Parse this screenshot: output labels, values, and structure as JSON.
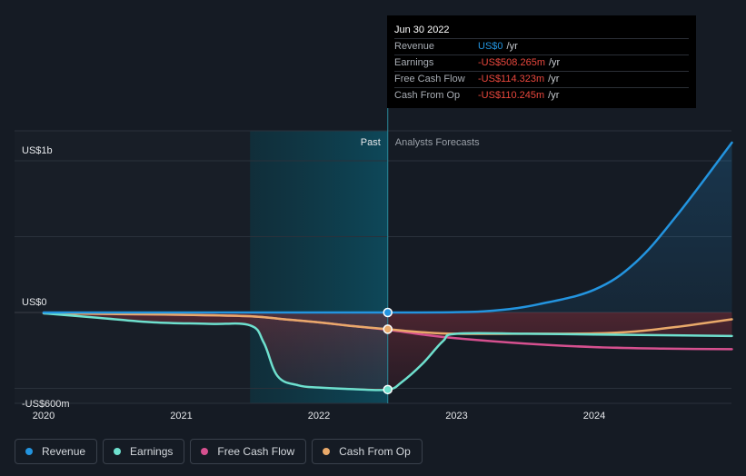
{
  "colors": {
    "background": "#151b24",
    "revenue": "#2394df",
    "earnings": "#6ee0ce",
    "free_cash_flow": "#d6508f",
    "cash_from_op": "#e9a96a",
    "negative_value": "#e8473d",
    "positive_value": "#2394df"
  },
  "tooltip": {
    "date": "Jun 30 2022",
    "rows": [
      {
        "label": "Revenue",
        "value": "US$0",
        "unit": "/yr",
        "tone": "positive"
      },
      {
        "label": "Earnings",
        "value": "-US$508.265m",
        "unit": "/yr",
        "tone": "negative"
      },
      {
        "label": "Free Cash Flow",
        "value": "-US$114.323m",
        "unit": "/yr",
        "tone": "negative"
      },
      {
        "label": "Cash From Op",
        "value": "-US$110.245m",
        "unit": "/yr",
        "tone": "negative"
      }
    ]
  },
  "legend": [
    {
      "label": "Revenue",
      "color_key": "revenue"
    },
    {
      "label": "Earnings",
      "color_key": "earnings"
    },
    {
      "label": "Free Cash Flow",
      "color_key": "free_cash_flow"
    },
    {
      "label": "Cash From Op",
      "color_key": "cash_from_op"
    }
  ],
  "chart_data": {
    "type": "line",
    "title": "",
    "units": "US$ millions",
    "ylim": [
      -650,
      1200
    ],
    "xlim": [
      2019.9,
      2025.0
    ],
    "y_axis_labels": [
      {
        "value": 1000,
        "label": "US$1b"
      },
      {
        "value": 0,
        "label": "US$0"
      },
      {
        "value": -600,
        "label": "-US$600m"
      }
    ],
    "x_ticks": [
      {
        "value": 2020,
        "label": "2020"
      },
      {
        "value": 2021,
        "label": "2021"
      },
      {
        "value": 2022,
        "label": "2022"
      },
      {
        "value": 2023,
        "label": "2023"
      },
      {
        "value": 2024,
        "label": "2024"
      }
    ],
    "divider": {
      "x": 2022.5,
      "past_label": "Past",
      "forecast_label": "Analysts Forecasts"
    },
    "highlight_start": 2021.5,
    "series": [
      {
        "name": "Revenue",
        "color_key": "revenue",
        "fill": true,
        "x": [
          2020.0,
          2021.0,
          2022.0,
          2022.5,
          2023.0,
          2023.3,
          2023.6,
          2024.0,
          2024.3,
          2024.6,
          2025.0
        ],
        "y": [
          0,
          0,
          0,
          0,
          2,
          15,
          55,
          150,
          330,
          640,
          1120
        ]
      },
      {
        "name": "Free Cash Flow",
        "color_key": "free_cash_flow",
        "fill": false,
        "x": [
          2020.0,
          2020.5,
          2021.0,
          2021.5,
          2021.75,
          2022.0,
          2022.25,
          2022.5,
          2022.75,
          2023.0,
          2023.5,
          2024.0,
          2024.5,
          2025.0
        ],
        "y": [
          -5,
          -10,
          -15,
          -25,
          -45,
          -65,
          -90,
          -114,
          -145,
          -170,
          -205,
          -228,
          -238,
          -242
        ]
      },
      {
        "name": "Cash From Op",
        "color_key": "cash_from_op",
        "fill": false,
        "x": [
          2020.0,
          2020.5,
          2021.0,
          2021.5,
          2021.75,
          2022.0,
          2022.25,
          2022.5,
          2022.75,
          2023.0,
          2023.5,
          2024.0,
          2024.3,
          2024.6,
          2025.0
        ],
        "y": [
          -5,
          -10,
          -15,
          -25,
          -45,
          -65,
          -90,
          -110,
          -130,
          -140,
          -140,
          -138,
          -125,
          -95,
          -45
        ]
      },
      {
        "name": "Earnings",
        "color_key": "earnings",
        "fill": true,
        "x": [
          2020.0,
          2020.4,
          2020.8,
          2021.2,
          2021.5,
          2021.6,
          2021.7,
          2021.85,
          2022.0,
          2022.25,
          2022.5,
          2022.6,
          2022.75,
          2022.9,
          2023.0,
          2023.5,
          2024.0,
          2024.5,
          2025.0
        ],
        "y": [
          -5,
          -35,
          -65,
          -75,
          -85,
          -200,
          -420,
          -480,
          -495,
          -505,
          -508,
          -460,
          -340,
          -190,
          -140,
          -140,
          -145,
          -150,
          -155
        ]
      }
    ],
    "markers": [
      {
        "series": "Revenue",
        "x": 2022.5,
        "y": 0
      },
      {
        "series": "Cash From Op",
        "x": 2022.5,
        "y": -110
      },
      {
        "series": "Earnings",
        "x": 2022.5,
        "y": -508
      }
    ]
  }
}
